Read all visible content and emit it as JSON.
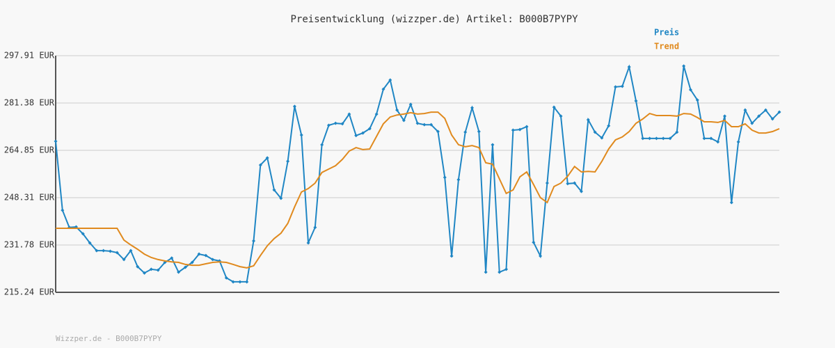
{
  "chart_data": {
    "type": "line",
    "title": "Preisentwicklung (wizzper.de) Artikel: B000B7PYPY",
    "footer": "Wizzper.de - B000B7PYPY",
    "ylim": [
      215.24,
      297.91
    ],
    "yticks": [
      {
        "value": 215.24,
        "label": "215.24 EUR"
      },
      {
        "value": 231.78,
        "label": "231.78 EUR"
      },
      {
        "value": 248.31,
        "label": "248.31 EUR"
      },
      {
        "value": 264.85,
        "label": "264.85 EUR"
      },
      {
        "value": 281.38,
        "label": "281.38 EUR"
      },
      {
        "value": 297.91,
        "label": "297.91 EUR"
      }
    ],
    "grid": true,
    "series": [
      {
        "name": "Preis",
        "color": "#1f86c4",
        "markers": true,
        "values": [
          268.0,
          243.9,
          237.9,
          238.1,
          235.7,
          232.5,
          229.8,
          229.8,
          229.6,
          229.1,
          226.7,
          229.8,
          224.2,
          222.0,
          223.3,
          223.0,
          225.7,
          227.2,
          222.3,
          224.0,
          225.7,
          228.6,
          228.1,
          226.7,
          226.2,
          220.3,
          218.9,
          218.9,
          218.9,
          233.2,
          259.7,
          262.2,
          251.0,
          248.1,
          261.0,
          280.2,
          270.2,
          232.5,
          237.9,
          266.8,
          273.6,
          274.3,
          274.1,
          277.5,
          270.0,
          270.9,
          272.4,
          277.5,
          286.2,
          289.4,
          278.9,
          275.3,
          280.9,
          274.3,
          273.8,
          273.8,
          271.4,
          255.4,
          227.9,
          254.6,
          271.2,
          279.7,
          271.4,
          222.3,
          266.8,
          222.3,
          223.3,
          271.9,
          272.1,
          273.1,
          232.7,
          227.9,
          253.4,
          279.9,
          276.8,
          253.2,
          253.4,
          250.5,
          275.5,
          271.2,
          269.2,
          273.4,
          287.0,
          287.2,
          294.0,
          282.1,
          269.0,
          269.0,
          269.0,
          269.0,
          269.0,
          271.2,
          294.3,
          286.0,
          282.4,
          269.0,
          269.0,
          267.8,
          276.8,
          246.6,
          267.8,
          278.9,
          274.3,
          276.8,
          278.9,
          275.8,
          278.2
        ]
      },
      {
        "name": "Trend",
        "color": "#e08a1e",
        "markers": false,
        "values": [
          237.6,
          237.6,
          237.6,
          237.6,
          237.6,
          237.6,
          237.6,
          237.6,
          237.6,
          237.6,
          233.5,
          231.8,
          230.3,
          228.6,
          227.4,
          226.7,
          226.2,
          225.9,
          225.7,
          225.0,
          224.7,
          224.7,
          225.2,
          225.7,
          225.9,
          225.7,
          225.0,
          224.2,
          223.8,
          224.5,
          228.1,
          231.5,
          234.0,
          235.9,
          239.3,
          245.1,
          250.3,
          251.5,
          253.4,
          257.1,
          258.3,
          259.5,
          261.7,
          264.6,
          265.8,
          265.1,
          265.3,
          269.7,
          274.1,
          276.5,
          277.2,
          277.5,
          278.0,
          277.5,
          277.7,
          278.2,
          278.2,
          276.0,
          270.2,
          266.8,
          266.1,
          266.5,
          265.8,
          260.5,
          260.0,
          254.9,
          249.8,
          251.0,
          255.6,
          257.3,
          252.9,
          248.3,
          246.6,
          252.2,
          253.4,
          255.8,
          259.2,
          257.3,
          257.5,
          257.3,
          261.0,
          265.3,
          268.5,
          269.5,
          271.4,
          274.3,
          275.8,
          277.7,
          277.0,
          277.0,
          277.0,
          276.8,
          277.7,
          277.5,
          276.3,
          274.8,
          274.8,
          274.6,
          275.3,
          273.1,
          273.1,
          274.1,
          271.9,
          270.9,
          270.9,
          271.4,
          272.4
        ]
      }
    ]
  }
}
